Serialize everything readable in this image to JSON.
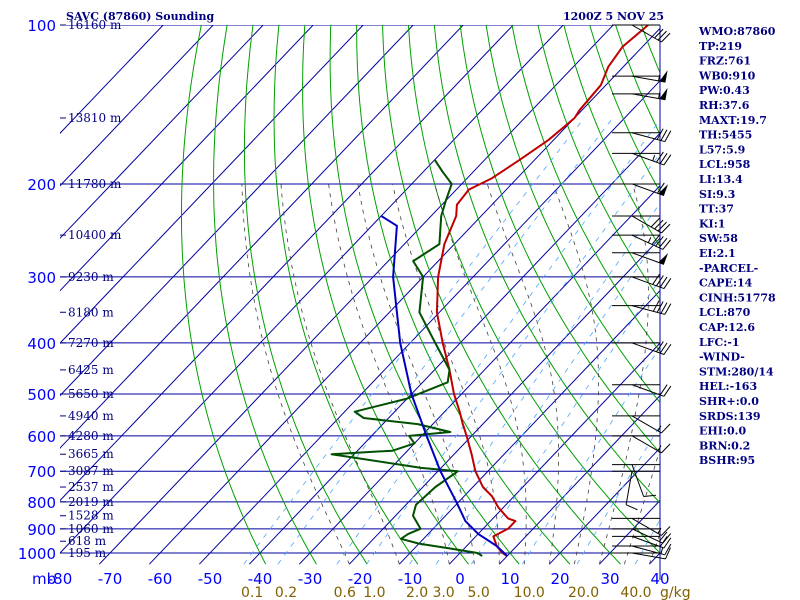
{
  "header": {
    "title": "SAVC (87860) Sounding",
    "datetime": "1200Z  5 NOV 25"
  },
  "pressure_axis": {
    "unit_label": "mb",
    "ticks": [
      "100",
      "200",
      "300",
      "400",
      "500",
      "600",
      "700",
      "800",
      "900",
      "1000"
    ]
  },
  "temperature_axis": {
    "ticks": [
      "-80",
      "-70",
      "-60",
      "-50",
      "-40",
      "-30",
      "-20",
      "-10",
      "0",
      "10",
      "20",
      "30",
      "40"
    ]
  },
  "mixing_ratio_axis": {
    "ticks": [
      "0.1",
      "0.2",
      "0.6",
      "1.0",
      "2.0",
      "3.0",
      "5.0",
      "10.0",
      "20.0",
      "40.0"
    ],
    "unit": "g/kg"
  },
  "height_labels": [
    "16160 m",
    "13810 m",
    "11780 m",
    "10400 m",
    "9230 m",
    "8180 m",
    "7270 m",
    "6425 m",
    "5650 m",
    "4940 m",
    "4280 m",
    "3665 m",
    "3087 m",
    "2537 m",
    "2019 m",
    "1528 m",
    "1060 m",
    "618 m",
    "195 m"
  ],
  "indices": [
    "WMO:87860",
    "TP:219",
    "FRZ:761",
    "WB0:910",
    "PW:0.43",
    "RH:37.6",
    "MAXT:19.7",
    "TH:5455",
    "L57:5.9",
    "LCL:958",
    "LI:13.4",
    "SI:9.3",
    "TT:37",
    "KI:1",
    "SW:58",
    "EI:2.1",
    "-PARCEL-",
    "CAPE:14",
    "CINH:51778",
    "LCL:870",
    "CAP:12.6",
    "LFC:-1",
    "-WIND-",
    "STM:280/14",
    "HEL:-163",
    "SHR+:0.0",
    "SRDS:139",
    "EHI:0.0",
    "BRN:0.2",
    "BSHR:95"
  ],
  "colors": {
    "background": "#ffffff",
    "isobar_grid": "#0000a0",
    "isotherm_grid": "#0000a0",
    "dry_adiabat": "#00a000",
    "moist_adiabat": "#404040",
    "mixing_ratio": "#4da6ff",
    "temperature": "#c00000",
    "dewpoint": "#005000",
    "parcel": "#0000c0",
    "axis_text": "#0000ff",
    "mixing_text": "#806000",
    "header_text": "#000080",
    "wind_barb": "#000000"
  },
  "chart_data": {
    "type": "skew-t",
    "pressure_range": [
      1000,
      100
    ],
    "temperature_range": [
      -80,
      40
    ],
    "series": [
      {
        "name": "temperature",
        "points": [
          [
            1013,
            10.0
          ],
          [
            1000,
            8.5
          ],
          [
            970,
            6.0
          ],
          [
            930,
            3.5
          ],
          [
            900,
            5.0
          ],
          [
            870,
            5.0
          ],
          [
            860,
            3.0
          ],
          [
            820,
            -1.0
          ],
          [
            780,
            -4.5
          ],
          [
            750,
            -8.0
          ],
          [
            700,
            -12.5
          ],
          [
            650,
            -16.5
          ],
          [
            600,
            -21.0
          ],
          [
            570,
            -24.0
          ],
          [
            540,
            -27.0
          ],
          [
            500,
            -31.5
          ],
          [
            450,
            -37.0
          ],
          [
            400,
            -43.5
          ],
          [
            350,
            -50.5
          ],
          [
            300,
            -57.0
          ],
          [
            260,
            -62.0
          ],
          [
            230,
            -65.0
          ],
          [
            219,
            -67.0
          ],
          [
            205,
            -67.5
          ],
          [
            195,
            -65.0
          ],
          [
            180,
            -63.0
          ],
          [
            165,
            -61.0
          ],
          [
            150,
            -60.0
          ],
          [
            145,
            -60.5
          ],
          [
            130,
            -61.0
          ],
          [
            120,
            -63.0
          ],
          [
            110,
            -64.0
          ],
          [
            100,
            -63.0
          ]
        ]
      },
      {
        "name": "dewpoint",
        "points": [
          [
            1013,
            5.0
          ],
          [
            1000,
            3.5
          ],
          [
            980,
            -3.0
          ],
          [
            960,
            -10.0
          ],
          [
            940,
            -14.5
          ],
          [
            920,
            -14.0
          ],
          [
            900,
            -12.5
          ],
          [
            850,
            -16.5
          ],
          [
            810,
            -18.0
          ],
          [
            750,
            -17.5
          ],
          [
            700,
            -16.0
          ],
          [
            690,
            -24.0
          ],
          [
            650,
            -44.5
          ],
          [
            640,
            -33.0
          ],
          [
            620,
            -30.0
          ],
          [
            600,
            -32.5
          ],
          [
            590,
            -25.0
          ],
          [
            570,
            -33.0
          ],
          [
            555,
            -45.0
          ],
          [
            540,
            -48.0
          ],
          [
            510,
            -40.0
          ],
          [
            475,
            -35.0
          ],
          [
            450,
            -37.0
          ],
          [
            400,
            -45.0
          ],
          [
            350,
            -54.0
          ],
          [
            300,
            -60.0
          ],
          [
            280,
            -65.0
          ],
          [
            260,
            -63.0
          ],
          [
            230,
            -68.0
          ],
          [
            215,
            -70.0
          ],
          [
            200,
            -72.0
          ],
          [
            190,
            -76.0
          ],
          [
            180,
            -80.0
          ]
        ]
      },
      {
        "name": "parcel",
        "points": [
          [
            1013,
            10.0
          ],
          [
            970,
            6.0
          ],
          [
            920,
            0.0
          ],
          [
            870,
            -5.0
          ],
          [
            800,
            -10.5
          ],
          [
            700,
            -19.5
          ],
          [
            600,
            -29.0
          ],
          [
            500,
            -40.0
          ],
          [
            400,
            -52.0
          ],
          [
            300,
            -66.0
          ],
          [
            240,
            -75.0
          ],
          [
            230,
            -80.0
          ]
        ]
      }
    ],
    "wind_barbs": [
      {
        "p": 1000,
        "dir": 280,
        "spd": 10
      },
      {
        "p": 970,
        "dir": 285,
        "spd": 15
      },
      {
        "p": 930,
        "dir": 290,
        "spd": 20
      },
      {
        "p": 900,
        "dir": 295,
        "spd": 20
      },
      {
        "p": 860,
        "dir": 300,
        "spd": 15
      },
      {
        "p": 700,
        "dir": 10,
        "spd": 10
      },
      {
        "p": 680,
        "dir": 340,
        "spd": 10
      },
      {
        "p": 600,
        "dir": 300,
        "spd": 15
      },
      {
        "p": 550,
        "dir": 300,
        "spd": 15
      },
      {
        "p": 480,
        "dir": 290,
        "spd": 20
      },
      {
        "p": 400,
        "dir": 290,
        "spd": 30
      },
      {
        "p": 340,
        "dir": 285,
        "spd": 40
      },
      {
        "p": 300,
        "dir": 290,
        "spd": 40
      },
      {
        "p": 270,
        "dir": 290,
        "spd": 50
      },
      {
        "p": 250,
        "dir": 295,
        "spd": 45
      },
      {
        "p": 230,
        "dir": 300,
        "spd": 40
      },
      {
        "p": 200,
        "dir": 290,
        "spd": 60
      },
      {
        "p": 175,
        "dir": 290,
        "spd": 35
      },
      {
        "p": 160,
        "dir": 285,
        "spd": 30
      },
      {
        "p": 135,
        "dir": 280,
        "spd": 55
      },
      {
        "p": 125,
        "dir": 280,
        "spd": 55
      },
      {
        "p": 100,
        "dir": 300,
        "spd": 30
      }
    ]
  }
}
